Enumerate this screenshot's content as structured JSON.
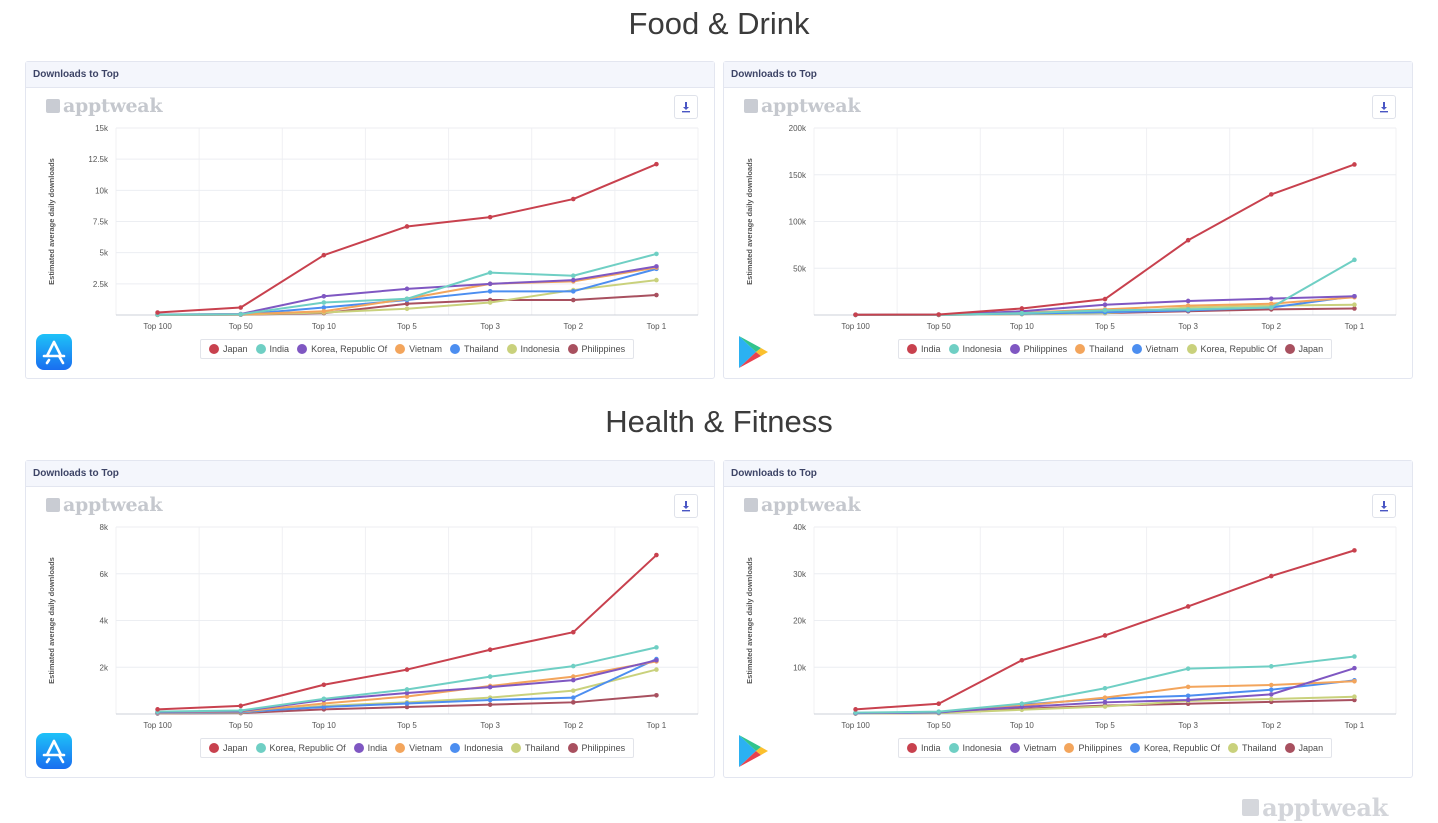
{
  "sections": [
    {
      "title": "Food & Drink"
    },
    {
      "title": "Health & Fitness"
    }
  ],
  "brand": {
    "name": "apptweak"
  },
  "icons": {
    "download": "download-icon",
    "app_store": "app-store-icon",
    "google_play": "google-play-icon",
    "brand": "apptweak-logo-icon"
  },
  "chart_data": [
    {
      "type": "line",
      "panel_title": "Downloads to Top",
      "store": "App Store",
      "ylabel": "Estimated average daily downloads",
      "xlabel": "",
      "categories": [
        "Top 100",
        "Top 50",
        "Top 10",
        "Top 5",
        "Top 3",
        "Top 2",
        "Top 1"
      ],
      "ylim": [
        0,
        15000
      ],
      "yticks": [
        2500,
        5000,
        7500,
        10000,
        12500,
        15000
      ],
      "ytick_labels": [
        "2.5k",
        "5k",
        "7.5k",
        "10k",
        "12.5k",
        "15k"
      ],
      "grid": true,
      "legend": "bottom",
      "series": [
        {
          "name": "Japan",
          "color": "#c8414e",
          "values": [
            200,
            600,
            4800,
            7100,
            7850,
            9300,
            12100
          ]
        },
        {
          "name": "India",
          "color": "#6fcfc4",
          "values": [
            30,
            60,
            1000,
            1300,
            3400,
            3150,
            4900
          ]
        },
        {
          "name": "Korea, Republic Of",
          "color": "#7f57c2",
          "values": [
            40,
            80,
            1500,
            2100,
            2500,
            2800,
            3900
          ]
        },
        {
          "name": "Vietnam",
          "color": "#f3a55c",
          "values": [
            20,
            50,
            300,
            1300,
            2500,
            2700,
            3800
          ]
        },
        {
          "name": "Thailand",
          "color": "#4c8ef0",
          "values": [
            20,
            40,
            600,
            1200,
            1900,
            1900,
            3700
          ]
        },
        {
          "name": "Indonesia",
          "color": "#c9d17c",
          "values": [
            10,
            30,
            200,
            500,
            1000,
            2000,
            2800
          ]
        },
        {
          "name": "Philippines",
          "color": "#a8505f",
          "values": [
            10,
            20,
            150,
            900,
            1200,
            1200,
            1600
          ]
        }
      ]
    },
    {
      "type": "line",
      "panel_title": "Downloads to Top",
      "store": "Google Play",
      "ylabel": "Estimated average daily downloads",
      "xlabel": "",
      "categories": [
        "Top 100",
        "Top 50",
        "Top 10",
        "Top 5",
        "Top 3",
        "Top 2",
        "Top 1"
      ],
      "ylim": [
        0,
        200000
      ],
      "yticks": [
        50000,
        100000,
        150000,
        200000
      ],
      "ytick_labels": [
        "50k",
        "100k",
        "150k",
        "200k"
      ],
      "grid": true,
      "legend": "bottom",
      "series": [
        {
          "name": "India",
          "color": "#c8414e",
          "values": [
            300,
            500,
            7000,
            17000,
            80000,
            129000,
            161000
          ]
        },
        {
          "name": "Indonesia",
          "color": "#6fcfc4",
          "values": [
            100,
            200,
            2000,
            5000,
            6000,
            8000,
            59000
          ]
        },
        {
          "name": "Philippines",
          "color": "#7f57c2",
          "values": [
            200,
            300,
            4000,
            11000,
            15000,
            17500,
            20000
          ]
        },
        {
          "name": "Thailand",
          "color": "#f3a55c",
          "values": [
            100,
            200,
            2500,
            6000,
            10000,
            12000,
            19000
          ]
        },
        {
          "name": "Vietnam",
          "color": "#4c8ef0",
          "values": [
            100,
            200,
            1500,
            3000,
            5000,
            8000,
            20000
          ]
        },
        {
          "name": "Korea, Republic Of",
          "color": "#c9d17c",
          "values": [
            100,
            200,
            1000,
            2000,
            8000,
            10000,
            11000
          ]
        },
        {
          "name": "Japan",
          "color": "#a8505f",
          "values": [
            100,
            200,
            1000,
            2000,
            4000,
            6000,
            7000
          ]
        }
      ]
    },
    {
      "type": "line",
      "panel_title": "Downloads to Top",
      "store": "App Store",
      "ylabel": "Estimated average daily downloads",
      "xlabel": "",
      "categories": [
        "Top 100",
        "Top 50",
        "Top 10",
        "Top 5",
        "Top 3",
        "Top 2",
        "Top 1"
      ],
      "ylim": [
        0,
        8000
      ],
      "yticks": [
        2000,
        4000,
        6000,
        8000
      ],
      "ytick_labels": [
        "2k",
        "4k",
        "6k",
        "8k"
      ],
      "grid": true,
      "legend": "bottom",
      "series": [
        {
          "name": "Japan",
          "color": "#c8414e",
          "values": [
            200,
            350,
            1250,
            1900,
            2750,
            3500,
            6800
          ]
        },
        {
          "name": "Korea, Republic Of",
          "color": "#6fcfc4",
          "values": [
            100,
            150,
            650,
            1050,
            1600,
            2050,
            2850
          ]
        },
        {
          "name": "India",
          "color": "#7f57c2",
          "values": [
            80,
            120,
            600,
            900,
            1150,
            1450,
            2300
          ]
        },
        {
          "name": "Vietnam",
          "color": "#f3a55c",
          "values": [
            60,
            100,
            450,
            750,
            1200,
            1600,
            2250
          ]
        },
        {
          "name": "Indonesia",
          "color": "#4c8ef0",
          "values": [
            40,
            80,
            300,
            450,
            600,
            700,
            2350
          ]
        },
        {
          "name": "Thailand",
          "color": "#c9d17c",
          "values": [
            30,
            60,
            350,
            500,
            700,
            1000,
            1900
          ]
        },
        {
          "name": "Philippines",
          "color": "#a8505f",
          "values": [
            20,
            40,
            200,
            300,
            400,
            500,
            800
          ]
        }
      ]
    },
    {
      "type": "line",
      "panel_title": "Downloads to Top",
      "store": "Google Play",
      "ylabel": "Estimated average daily downloads",
      "xlabel": "",
      "categories": [
        "Top 100",
        "Top 50",
        "Top 10",
        "Top 5",
        "Top 3",
        "Top 2",
        "Top 1"
      ],
      "ylim": [
        0,
        40000
      ],
      "yticks": [
        10000,
        20000,
        30000,
        40000
      ],
      "ytick_labels": [
        "10k",
        "20k",
        "30k",
        "40k"
      ],
      "grid": true,
      "legend": "bottom",
      "series": [
        {
          "name": "India",
          "color": "#c8414e",
          "values": [
            1000,
            2200,
            11500,
            16800,
            23000,
            29500,
            35000
          ]
        },
        {
          "name": "Indonesia",
          "color": "#6fcfc4",
          "values": [
            300,
            500,
            2200,
            5500,
            9700,
            10200,
            12300
          ]
        },
        {
          "name": "Vietnam",
          "color": "#7f57c2",
          "values": [
            200,
            400,
            1500,
            2500,
            3000,
            4200,
            9800
          ]
        },
        {
          "name": "Philippines",
          "color": "#f3a55c",
          "values": [
            200,
            400,
            1800,
            3500,
            5800,
            6200,
            7000
          ]
        },
        {
          "name": "Korea, Republic Of",
          "color": "#4c8ef0",
          "values": [
            150,
            300,
            2000,
            3300,
            3900,
            5200,
            7200
          ]
        },
        {
          "name": "Thailand",
          "color": "#c9d17c",
          "values": [
            100,
            200,
            900,
            1600,
            2800,
            3200,
            3700
          ]
        },
        {
          "name": "Japan",
          "color": "#a8505f",
          "values": [
            100,
            200,
            1100,
            1800,
            2200,
            2600,
            3000
          ]
        }
      ]
    }
  ]
}
